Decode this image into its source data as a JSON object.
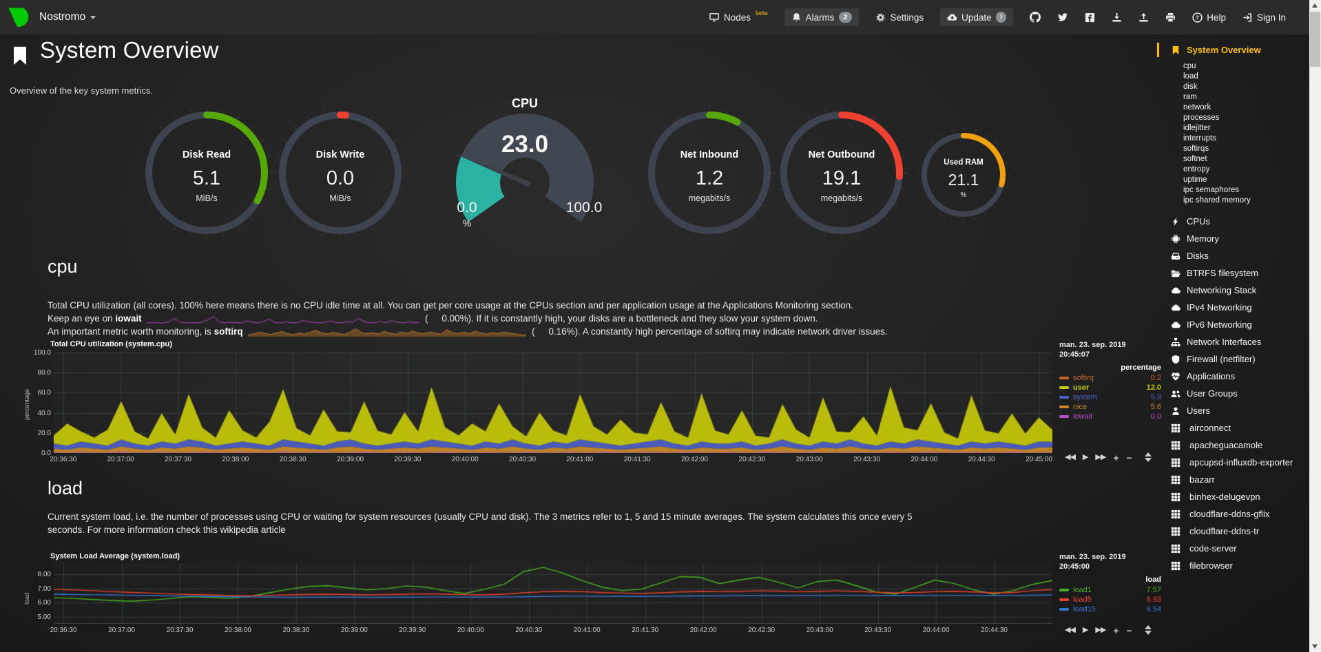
{
  "navbar": {
    "hostname": "Nostromo",
    "nodes": "Nodes",
    "nodes_beta": "beta",
    "alarms": "Alarms",
    "alarms_count": "2",
    "settings": "Settings",
    "update": "Update",
    "update_badge": "!",
    "help": "Help",
    "signin": "Sign In"
  },
  "page": {
    "title": "System Overview",
    "subtitle": "Overview of the key system metrics."
  },
  "gauges": [
    {
      "label": "Disk Read",
      "value": "5.1",
      "unit": "MiB/s",
      "type": "ring",
      "percent": 33,
      "color": "#56A805"
    },
    {
      "label": "Disk Write",
      "value": "0.0",
      "unit": "MiB/s",
      "type": "ring",
      "percent": 1.5,
      "color": "#F0402F"
    },
    {
      "label": "CPU",
      "value": "23.0",
      "unit": "%",
      "type": "gauge",
      "percent": 23,
      "color": "#2CB2A2",
      "min": "0.0",
      "max": "100.0"
    },
    {
      "label": "Net Inbound",
      "value": "1.2",
      "unit": "megabits/s",
      "type": "ring",
      "percent": 8,
      "color": "#56A805"
    },
    {
      "label": "Net Outbound",
      "value": "19.1",
      "unit": "megabits/s",
      "type": "ring",
      "percent": 26,
      "color": "#F0402F"
    },
    {
      "label": "Used RAM",
      "value": "21.1",
      "unit": "%",
      "type": "ring-sm",
      "percent": 29,
      "color": "#F1A00E"
    }
  ],
  "cpu_section": {
    "heading": "cpu",
    "desc1": "Total CPU utilization (all cores). 100% here means there is no CPU idle time at all. You can get per core usage at the CPUs section and per application usage at the Applications Monitoring section.",
    "desc2_pre": "Keep an eye on ",
    "desc2_bold": "iowait",
    "desc2_open": "(",
    "iowait_value": "0.00%",
    "desc2_close": ").",
    "desc2_post": " If it is constantly high, your disks are a bottleneck and they slow your system down.",
    "desc3_pre": "An important metric worth monitoring, is ",
    "desc3_bold": "softirq",
    "desc3_open": "(",
    "softirq_value": "0.16%",
    "desc3_close": ").",
    "desc3_post": " A constantly high percentage of softirq may indicate network driver issues."
  },
  "load_section": {
    "heading": "load",
    "desc": "Current system load, i.e. the number of processes using CPU or waiting for system resources (usually CPU and disk). The 3 metrics refer to 1, 5 and 15 minute averages. The system calculates this once every 5 seconds. For more information check this ",
    "desc_link": "wikipedia article"
  },
  "toolbar": {
    "skip_back": "◀◀",
    "play": "▶",
    "skip_fwd": "▶▶",
    "zoom_in": "+",
    "zoom_out": "−"
  },
  "sparklines": {
    "iowait": {
      "color": "#B24BBF",
      "data": [
        0,
        0.1,
        0,
        0,
        0.5,
        1.8,
        0.2,
        0,
        0.1,
        0,
        0.3,
        1.2,
        2.5,
        0.4,
        0,
        0.2,
        0.1,
        0,
        0.8,
        0.3,
        0,
        0.6,
        1.5,
        0.2,
        0,
        0.4,
        0.1,
        0,
        1.0,
        0.5,
        0.2,
        0,
        0.3,
        0.8,
        0.1,
        0,
        0.5,
        0.2,
        1.8,
        0.6,
        0,
        0.2,
        0.5,
        0.1,
        0.9,
        0.3,
        0,
        0.4,
        0.2,
        0
      ]
    },
    "softirq": {
      "color": "#C87B2E",
      "data": [
        0.3,
        0.8,
        1.4,
        1.0,
        0.6,
        1.2,
        1.8,
        0.9,
        0.5,
        1.1,
        0.7,
        1.5,
        2.2,
        1.2,
        0.8,
        1.4,
        1.0,
        0.6,
        1.6,
        2.8,
        1.4,
        0.9,
        1.3,
        0.8,
        1.8,
        1.1,
        0.7,
        1.5,
        1.0,
        1.9,
        1.2,
        0.8,
        1.6,
        1.1,
        0.7,
        2.4,
        1.3,
        0.9,
        1.5,
        1.0,
        1.8,
        1.2,
        0.7,
        1.3,
        0.9,
        1.6,
        1.1,
        0.8,
        0.5,
        0.4
      ]
    }
  },
  "chart_data": [
    {
      "id": "cpu",
      "type": "area",
      "title": "Total CPU utilization (system.cpu)",
      "ylabel": "percentage",
      "unit": "percentage",
      "date": "man. 23. sep. 2019",
      "time": "20:45:07",
      "ylim": [
        0,
        100
      ],
      "yticks": [
        {
          "v": 100,
          "label": "100.0"
        },
        {
          "v": 80,
          "label": "80.0"
        },
        {
          "v": 60,
          "label": "60.0"
        },
        {
          "v": 40,
          "label": "40.0"
        },
        {
          "v": 20,
          "label": "20.0"
        },
        {
          "v": 0,
          "label": "0.0"
        }
      ],
      "xticks": [
        "20:36:30",
        "20:37:00",
        "20:37:30",
        "20:38:00",
        "20:38:30",
        "20:39:00",
        "20:39:30",
        "20:40:00",
        "20:40:30",
        "20:41:00",
        "20:41:30",
        "20:42:00",
        "20:42:30",
        "20:43:00",
        "20:43:30",
        "20:44:00",
        "20:44:30",
        "20:45:00"
      ],
      "xtick_step": 30,
      "xtick_offset": 5,
      "x_span": 522,
      "stack": [
        "softirq",
        "nice",
        "system",
        "user"
      ],
      "series": [
        {
          "name": "softirq",
          "color": "#C4652B",
          "value": "0.2",
          "data": [
            0.4,
            0.3,
            0.5,
            0.4,
            0.3,
            0.6,
            0.4,
            0.3,
            0.5,
            0.4,
            0.6,
            0.5,
            0.3,
            0.4,
            0.5,
            0.4,
            0.3,
            0.6,
            0.5,
            0.4,
            0.3,
            0.5,
            0.6,
            0.4,
            0.3,
            0.4,
            0.5,
            0.4,
            0.6,
            0.5,
            0.4,
            0.3,
            0.5,
            0.4,
            0.6,
            0.4,
            0.3,
            0.5,
            0.4,
            0.6,
            0.5,
            0.4,
            0.3,
            0.4,
            0.5,
            0.6,
            0.4,
            0.3,
            0.5,
            0.4,
            0.4,
            0.5,
            0.3,
            0.4,
            0.6,
            0.4,
            0.3,
            0.5,
            0.4,
            0.6,
            0.4,
            0.3,
            0.5,
            0.4,
            0.6,
            0.5,
            0.4,
            0.3,
            0.5,
            0.4,
            0.5,
            0.4,
            0.3,
            0.5,
            0.2
          ]
        },
        {
          "name": "user",
          "color": "#C9CC05",
          "value": "12.0",
          "bold": true,
          "data": [
            8,
            22,
            10,
            6,
            16,
            38,
            12,
            7,
            28,
            9,
            45,
            14,
            8,
            33,
            11,
            6,
            24,
            50,
            13,
            8,
            36,
            10,
            7,
            42,
            15,
            9,
            29,
            12,
            52,
            14,
            8,
            22,
            10,
            40,
            13,
            7,
            33,
            11,
            8,
            45,
            15,
            9,
            26,
            11,
            7,
            37,
            12,
            8,
            48,
            13,
            9,
            31,
            10,
            6,
            35,
            14,
            8,
            44,
            12,
            7,
            27,
            10,
            55,
            16,
            9,
            38,
            11,
            7,
            46,
            13,
            8,
            30,
            12,
            24,
            12
          ]
        },
        {
          "name": "system",
          "color": "#4E61C9",
          "value": "5.3",
          "data": [
            5,
            4,
            6,
            5,
            4,
            7,
            5,
            4,
            6,
            5,
            7,
            6,
            4,
            5,
            6,
            5,
            4,
            7,
            6,
            5,
            4,
            6,
            7,
            5,
            4,
            5,
            6,
            5,
            7,
            6,
            5,
            4,
            6,
            5,
            7,
            5,
            4,
            6,
            5,
            7,
            6,
            5,
            4,
            5,
            6,
            7,
            5,
            4,
            6,
            5,
            5,
            6,
            4,
            5,
            7,
            5,
            4,
            6,
            5,
            7,
            5,
            4,
            6,
            5,
            7,
            6,
            5,
            4,
            6,
            5,
            6,
            5,
            4,
            6,
            5.3
          ]
        },
        {
          "name": "nice",
          "color": "#CC8D28",
          "value": "5.6",
          "data": [
            4,
            3,
            5,
            4,
            3,
            6,
            4,
            3,
            5,
            4,
            6,
            5,
            3,
            4,
            5,
            4,
            3,
            6,
            5,
            4,
            3,
            5,
            6,
            4,
            3,
            4,
            5,
            4,
            6,
            5,
            4,
            3,
            5,
            4,
            6,
            4,
            3,
            5,
            4,
            6,
            5,
            4,
            3,
            4,
            5,
            6,
            4,
            3,
            5,
            4,
            4,
            5,
            3,
            4,
            6,
            4,
            3,
            5,
            4,
            6,
            4,
            3,
            5,
            4,
            6,
            5,
            4,
            3,
            5,
            4,
            5,
            4,
            3,
            5,
            5.6
          ]
        },
        {
          "name": "iowait",
          "color": "#B44FC4",
          "value": "0.0",
          "line": true,
          "data": [
            0,
            0,
            0.5,
            0,
            0,
            0.8,
            0,
            0,
            0.3,
            0,
            0,
            0.6,
            0,
            0,
            0.4,
            0,
            0,
            0.9,
            0,
            0,
            0.3,
            0,
            0,
            0.7,
            0,
            0,
            0.4,
            0,
            0,
            0.5,
            0,
            0,
            0.3,
            0,
            0,
            0.6,
            0,
            0,
            0.4,
            0,
            0,
            0.8,
            0,
            0,
            0.3,
            0,
            0,
            0.5,
            0,
            0,
            0.4,
            0,
            0,
            0.6,
            0,
            0,
            0.3,
            0,
            0,
            0.5,
            0,
            0,
            0.4,
            0,
            0,
            0.7,
            0,
            0,
            0.3,
            0,
            0,
            0.5,
            0,
            0,
            0
          ]
        }
      ]
    },
    {
      "id": "load",
      "type": "line",
      "title": "System Load Average (system.load)",
      "ylabel": "load",
      "unit": "load",
      "date": "man. 23. sep. 2019",
      "time": "20:45:00",
      "ylim": [
        4.5,
        8.8
      ],
      "yticks": [
        {
          "v": 8,
          "label": "8.00"
        },
        {
          "v": 7,
          "label": "7.00"
        },
        {
          "v": 6,
          "label": "6.00"
        },
        {
          "v": 5,
          "label": "5.00"
        }
      ],
      "xticks": [
        "20:36:30",
        "20:37:00",
        "20:37:30",
        "20:38:00",
        "20:38:30",
        "20:39:00",
        "20:39:30",
        "20:40:00",
        "20:40:30",
        "20:41:00",
        "20:41:30",
        "20:42:00",
        "20:42:30",
        "20:43:00",
        "20:43:30",
        "20:44:00",
        "20:44:30"
      ],
      "xtick_step": 30,
      "xtick_offset": 5,
      "x_span": 515,
      "series": [
        {
          "name": "load1",
          "color": "#45B41E",
          "value": "7.57",
          "data": [
            6.35,
            6.3,
            6.22,
            6.15,
            6.1,
            6.18,
            6.3,
            6.42,
            6.38,
            6.3,
            6.45,
            6.7,
            6.95,
            7.15,
            7.2,
            7.05,
            6.9,
            7.0,
            7.18,
            7.1,
            6.85,
            6.65,
            6.95,
            7.3,
            8.2,
            8.5,
            8.1,
            7.55,
            7.1,
            6.85,
            6.95,
            7.4,
            7.85,
            7.8,
            7.35,
            7.6,
            7.8,
            7.45,
            7.05,
            7.5,
            7.6,
            7.2,
            6.75,
            6.6,
            7.1,
            7.6,
            7.35,
            6.9,
            6.6,
            6.85,
            7.3,
            7.57
          ]
        },
        {
          "name": "load5",
          "color": "#E8412C",
          "value": "6.93",
          "data": [
            6.95,
            6.9,
            6.85,
            6.78,
            6.72,
            6.68,
            6.62,
            6.58,
            6.55,
            6.5,
            6.48,
            6.52,
            6.55,
            6.58,
            6.6,
            6.58,
            6.55,
            6.57,
            6.6,
            6.62,
            6.6,
            6.57,
            6.55,
            6.6,
            6.7,
            6.78,
            6.8,
            6.78,
            6.72,
            6.68,
            6.65,
            6.7,
            6.76,
            6.8,
            6.78,
            6.8,
            6.84,
            6.82,
            6.78,
            6.8,
            6.84,
            6.8,
            6.74,
            6.7,
            6.72,
            6.78,
            6.8,
            6.76,
            6.7,
            6.72,
            6.85,
            6.93
          ]
        },
        {
          "name": "load15",
          "color": "#3473D0",
          "value": "6.54",
          "data": [
            6.6,
            6.58,
            6.56,
            6.54,
            6.52,
            6.5,
            6.48,
            6.46,
            6.44,
            6.42,
            6.4,
            6.39,
            6.38,
            6.38,
            6.39,
            6.39,
            6.38,
            6.38,
            6.39,
            6.4,
            6.4,
            6.39,
            6.39,
            6.4,
            6.42,
            6.44,
            6.46,
            6.46,
            6.45,
            6.44,
            6.44,
            6.45,
            6.47,
            6.48,
            6.48,
            6.49,
            6.5,
            6.5,
            6.49,
            6.5,
            6.51,
            6.51,
            6.5,
            6.49,
            6.5,
            6.51,
            6.52,
            6.51,
            6.5,
            6.51,
            6.53,
            6.54
          ]
        }
      ]
    }
  ],
  "toc": {
    "items": [
      {
        "label": "System Overview",
        "icon": "bookmark",
        "type": "active"
      },
      {
        "label": "cpu",
        "type": "sub"
      },
      {
        "label": "load",
        "type": "sub"
      },
      {
        "label": "disk",
        "type": "sub"
      },
      {
        "label": "ram",
        "type": "sub"
      },
      {
        "label": "network",
        "type": "sub"
      },
      {
        "label": "processes",
        "type": "sub"
      },
      {
        "label": "idlejitter",
        "type": "sub"
      },
      {
        "label": "interrupts",
        "type": "sub"
      },
      {
        "label": "softirqs",
        "type": "sub"
      },
      {
        "label": "softnet",
        "type": "sub"
      },
      {
        "label": "entropy",
        "type": "sub"
      },
      {
        "label": "uptime",
        "type": "sub"
      },
      {
        "label": "ipc semaphores",
        "type": "sub"
      },
      {
        "label": "ipc shared memory",
        "type": "sub"
      },
      {
        "label": "CPUs",
        "icon": "bolt",
        "type": "section"
      },
      {
        "label": "Memory",
        "icon": "chip",
        "type": "section"
      },
      {
        "label": "Disks",
        "icon": "hdd",
        "type": "section"
      },
      {
        "label": "BTRFS filesystem",
        "icon": "folder",
        "type": "section"
      },
      {
        "label": "Networking Stack",
        "icon": "cloud",
        "type": "section"
      },
      {
        "label": "IPv4 Networking",
        "icon": "cloud",
        "type": "section"
      },
      {
        "label": "IPv6 Networking",
        "icon": "cloud",
        "type": "section"
      },
      {
        "label": "Network Interfaces",
        "icon": "sitemap",
        "type": "section"
      },
      {
        "label": "Firewall (netfilter)",
        "icon": "shield",
        "type": "section"
      },
      {
        "label": "Applications",
        "icon": "heartbeat",
        "type": "section"
      },
      {
        "label": "User Groups",
        "icon": "users",
        "type": "section"
      },
      {
        "label": "Users",
        "icon": "user",
        "type": "section"
      },
      {
        "label": "airconnect",
        "icon": "grid",
        "type": "container"
      },
      {
        "label": "apacheguacamole",
        "icon": "grid",
        "type": "container"
      },
      {
        "label": "apcupsd-influxdb-exporter",
        "icon": "grid",
        "type": "container"
      },
      {
        "label": "bazarr",
        "icon": "grid",
        "type": "container"
      },
      {
        "label": "binhex-delugevpn",
        "icon": "grid",
        "type": "container"
      },
      {
        "label": "cloudflare-ddns-gflix",
        "icon": "grid",
        "type": "container"
      },
      {
        "label": "cloudflare-ddns-tr",
        "icon": "grid",
        "type": "container"
      },
      {
        "label": "code-server",
        "icon": "grid",
        "type": "container"
      },
      {
        "label": "filebrowser",
        "icon": "grid",
        "type": "container"
      }
    ]
  },
  "colors": {
    "accent_yellow": "#FFC107",
    "logo_green": "#00CB00",
    "gauge_track": "#3D4450",
    "gauge_teal": "#2CB2A2",
    "green": "#56A805",
    "red": "#F0402F",
    "orange": "#F1A00E"
  }
}
